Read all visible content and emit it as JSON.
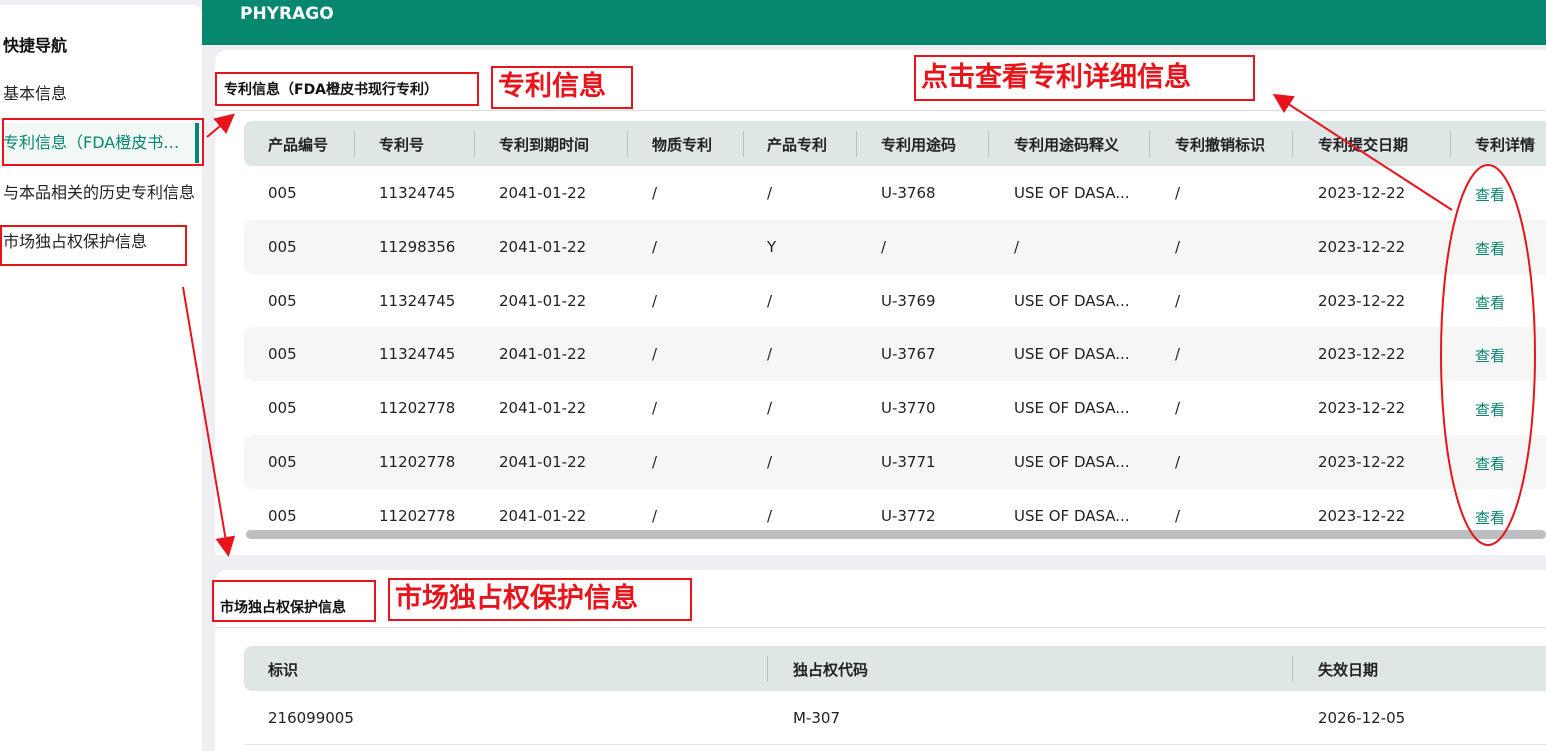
{
  "sidebar": {
    "title": "快捷导航",
    "items": [
      {
        "label": "基本信息"
      },
      {
        "label": "专利信息（FDA橙皮书现行专利）",
        "active": true
      },
      {
        "label": "与本品相关的历史专利信息"
      },
      {
        "label": "市场独占权保护信息"
      }
    ]
  },
  "header": {
    "brand": "PHYRAGO"
  },
  "patents": {
    "title": "专利信息（FDA橙皮书现行专利）",
    "columns": [
      "产品编号",
      "专利号",
      "专利到期时间",
      "物质专利",
      "产品专利",
      "专利用途码",
      "专利用途码释义",
      "专利撤销标识",
      "专利提交日期",
      "专利详情"
    ],
    "rows": [
      [
        "005",
        "11324745",
        "2041-01-22",
        "/",
        "/",
        "U-3768",
        "USE OF DASA...",
        "/",
        "2023-12-22",
        "查看"
      ],
      [
        "005",
        "11298356",
        "2041-01-22",
        "/",
        "Y",
        "/",
        "/",
        "/",
        "2023-12-22",
        "查看"
      ],
      [
        "005",
        "11324745",
        "2041-01-22",
        "/",
        "/",
        "U-3769",
        "USE OF DASA...",
        "/",
        "2023-12-22",
        "查看"
      ],
      [
        "005",
        "11324745",
        "2041-01-22",
        "/",
        "/",
        "U-3767",
        "USE OF DASA...",
        "/",
        "2023-12-22",
        "查看"
      ],
      [
        "005",
        "11202778",
        "2041-01-22",
        "/",
        "/",
        "U-3770",
        "USE OF DASA...",
        "/",
        "2023-12-22",
        "查看"
      ],
      [
        "005",
        "11202778",
        "2041-01-22",
        "/",
        "/",
        "U-3771",
        "USE OF DASA...",
        "/",
        "2023-12-22",
        "查看"
      ],
      [
        "005",
        "11202778",
        "2041-01-22",
        "/",
        "/",
        "U-3772",
        "USE OF DASA...",
        "/",
        "2023-12-22",
        "查看"
      ]
    ]
  },
  "exclusivity": {
    "title": "市场独占权保护信息",
    "columns": [
      "标识",
      "独占权代码",
      "失效日期"
    ],
    "rows": [
      [
        "216099005",
        "M-307",
        "2026-12-05"
      ]
    ]
  },
  "annotations": {
    "patent_label": "专利信息",
    "detail_label": "点击查看专利详细信息",
    "exclusivity_label": "市场独占权保护信息",
    "color": "#e8141c"
  },
  "colors": {
    "brand": "#07876f"
  }
}
